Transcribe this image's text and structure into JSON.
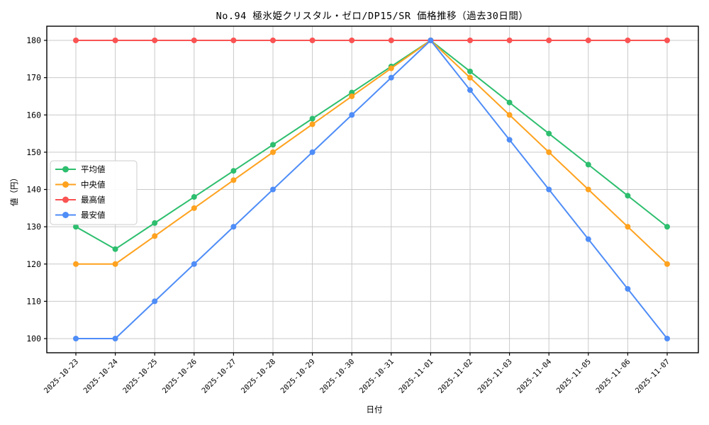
{
  "chart_data": {
    "type": "line",
    "title": "No.94 極氷姫クリスタル・ゼロ/DP15/SR 価格推移（過去30日間）",
    "xlabel": "日付",
    "ylabel": "値（円）",
    "x": [
      "2025-10-23",
      "2025-10-24",
      "2025-10-25",
      "2025-10-26",
      "2025-10-27",
      "2025-10-28",
      "2025-10-29",
      "2025-10-30",
      "2025-10-31",
      "2025-11-01",
      "2025-11-02",
      "2025-11-03",
      "2025-11-04",
      "2025-11-05",
      "2025-11-06",
      "2025-11-07"
    ],
    "yticks": [
      100,
      110,
      120,
      130,
      140,
      150,
      160,
      170,
      180
    ],
    "ylim": [
      96.2,
      183.8
    ],
    "grid": true,
    "legend_position": "center-left",
    "series": [
      {
        "name": "平均値",
        "color": "#2dbe6e",
        "values": [
          130,
          124,
          131,
          138,
          145,
          152,
          159,
          166,
          173,
          180,
          171.67,
          163.33,
          155,
          146.67,
          138.33,
          130
        ]
      },
      {
        "name": "中央値",
        "color": "#ffa21f",
        "values": [
          120,
          120,
          127.5,
          135,
          142.5,
          150,
          157.5,
          165,
          172.5,
          180,
          170,
          160,
          150,
          140,
          130,
          120
        ]
      },
      {
        "name": "最高値",
        "color": "#fa5353",
        "values": [
          180,
          180,
          180,
          180,
          180,
          180,
          180,
          180,
          180,
          180,
          180,
          180,
          180,
          180,
          180,
          180
        ]
      },
      {
        "name": "最安値",
        "color": "#4f8df7",
        "values": [
          100,
          100,
          110,
          120,
          130,
          140,
          150,
          160,
          170,
          180,
          166.67,
          153.33,
          140,
          126.67,
          113.33,
          100
        ]
      }
    ],
    "grid_color": "#c9c9c9",
    "axis_color": "#000000",
    "legend_border_color": "#cccccc",
    "background": "#ffffff"
  }
}
